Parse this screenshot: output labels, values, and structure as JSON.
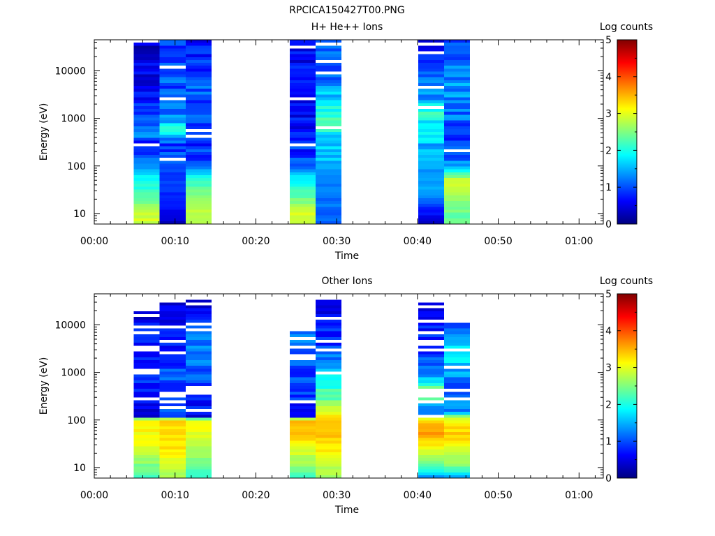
{
  "figure": {
    "title": "RPCICA150427T00.PNG"
  },
  "colormap": [
    "#000080",
    "#0000ff",
    "#0080ff",
    "#00ffff",
    "#80ff80",
    "#ffff00",
    "#ff8000",
    "#ff0000",
    "#800000"
  ],
  "chart_data": [
    {
      "type": "heatmap",
      "title": "H+ He++ Ions",
      "xlabel": "Time",
      "ylabel": "Energy (eV)",
      "xscale": "linear",
      "yscale": "log",
      "xlim": [
        0,
        63
      ],
      "ylim": [
        6,
        45000
      ],
      "xticks": [
        0,
        10,
        20,
        30,
        40,
        50,
        60
      ],
      "xtick_labels": [
        "00:00",
        "00:10",
        "00:20",
        "00:30",
        "00:40",
        "00:50",
        "01:00"
      ],
      "yticks": [
        10,
        100,
        1000,
        10000
      ],
      "ytick_labels": [
        "10",
        "100",
        "1000",
        "10000"
      ],
      "colorbar": {
        "label": "Log counts",
        "range": [
          0,
          5
        ],
        "ticks": [
          0,
          1,
          2,
          3,
          4,
          5
        ],
        "tick_labels": [
          "0",
          "1",
          "2",
          "3",
          "4",
          "5"
        ]
      },
      "columns": [
        {
          "t_start": 4.9,
          "t_end": 8.1,
          "energy_max": 45000,
          "profile": [
            [
              6,
              2.9
            ],
            [
              10,
              2.9
            ],
            [
              25,
              2.2
            ],
            [
              60,
              1.8
            ],
            [
              100,
              1.3
            ],
            [
              300,
              0.8
            ],
            [
              600,
              1.4
            ],
            [
              1000,
              0.8
            ],
            [
              5000,
              0.6
            ],
            [
              45000,
              0.4
            ]
          ]
        },
        {
          "t_start": 8.1,
          "t_end": 11.3,
          "energy_max": 45000,
          "profile": [
            [
              6,
              0.3
            ],
            [
              15,
              0.7
            ],
            [
              30,
              0.9
            ],
            [
              100,
              0.9
            ],
            [
              300,
              0.9
            ],
            [
              600,
              2.3
            ],
            [
              1000,
              1.2
            ],
            [
              5000,
              1.0
            ],
            [
              45000,
              0.8
            ]
          ]
        },
        {
          "t_start": 11.3,
          "t_end": 14.5,
          "energy_max": 45000,
          "profile": [
            [
              6,
              2.9
            ],
            [
              20,
              2.6
            ],
            [
              50,
              2.1
            ],
            [
              100,
              1.1
            ],
            [
              300,
              0.8
            ],
            [
              1000,
              1.0
            ],
            [
              5000,
              1.0
            ],
            [
              45000,
              0.6
            ]
          ]
        },
        {
          "t_start": 24.2,
          "t_end": 27.4,
          "energy_max": 45000,
          "profile": [
            [
              6,
              2.9
            ],
            [
              10,
              2.9
            ],
            [
              25,
              2.3
            ],
            [
              60,
              1.8
            ],
            [
              100,
              1.1
            ],
            [
              300,
              0.7
            ],
            [
              1000,
              0.6
            ],
            [
              5000,
              0.8
            ],
            [
              45000,
              0.4
            ]
          ]
        },
        {
          "t_start": 27.4,
          "t_end": 30.6,
          "energy_max": 45000,
          "profile": [
            [
              6,
              1.1
            ],
            [
              20,
              1.2
            ],
            [
              100,
              1.4
            ],
            [
              300,
              1.5
            ],
            [
              1000,
              2.2
            ],
            [
              3000,
              1.6
            ],
            [
              10000,
              1.0
            ],
            [
              45000,
              1.0
            ]
          ]
        },
        {
          "t_start": 40.1,
          "t_end": 43.3,
          "energy_max": 45000,
          "profile": [
            [
              6,
              0.4
            ],
            [
              15,
              0.9
            ],
            [
              30,
              1.4
            ],
            [
              100,
              1.4
            ],
            [
              300,
              1.5
            ],
            [
              800,
              1.8
            ],
            [
              1500,
              2.0
            ],
            [
              3000,
              1.3
            ],
            [
              10000,
              1.0
            ],
            [
              45000,
              0.6
            ]
          ]
        },
        {
          "t_start": 43.3,
          "t_end": 46.5,
          "energy_max": 45000,
          "profile": [
            [
              6,
              2.3
            ],
            [
              20,
              2.6
            ],
            [
              50,
              2.9
            ],
            [
              100,
              1.3
            ],
            [
              300,
              0.8
            ],
            [
              1000,
              1.1
            ],
            [
              5000,
              1.3
            ],
            [
              45000,
              0.9
            ]
          ]
        }
      ]
    },
    {
      "type": "heatmap",
      "title": "Other Ions",
      "xlabel": "Time",
      "ylabel": "Energy (eV)",
      "xscale": "linear",
      "yscale": "log",
      "xlim": [
        0,
        63
      ],
      "ylim": [
        6,
        45000
      ],
      "xticks": [
        0,
        10,
        20,
        30,
        40,
        50,
        60
      ],
      "xtick_labels": [
        "00:00",
        "00:10",
        "00:20",
        "00:30",
        "00:40",
        "00:50",
        "01:00"
      ],
      "yticks": [
        10,
        100,
        1000,
        10000
      ],
      "ytick_labels": [
        "10",
        "100",
        "1000",
        "10000"
      ],
      "colorbar": {
        "label": "Log counts",
        "range": [
          0,
          5
        ],
        "ticks": [
          0,
          1,
          2,
          3,
          4,
          5
        ],
        "tick_labels": [
          "0",
          "1",
          "2",
          "3",
          "4",
          "5"
        ]
      },
      "columns": [
        {
          "t_start": 4.9,
          "t_end": 8.1,
          "energy_max": 20000,
          "profile": [
            [
              6,
              2.2
            ],
            [
              10,
              2.4
            ],
            [
              20,
              2.9
            ],
            [
              50,
              3.1
            ],
            [
              100,
              3.2
            ],
            [
              120,
              0.3
            ],
            [
              1000,
              0.8
            ],
            [
              5000,
              0.7
            ],
            [
              20000,
              0.3
            ]
          ]
        },
        {
          "t_start": 8.1,
          "t_end": 11.3,
          "energy_max": 30000,
          "profile": [
            [
              6,
              2.6
            ],
            [
              10,
              2.8
            ],
            [
              20,
              3.2
            ],
            [
              50,
              3.3
            ],
            [
              100,
              3.3
            ],
            [
              120,
              1.0
            ],
            [
              1000,
              0.9
            ],
            [
              4000,
              0.7
            ],
            [
              30000,
              0.3
            ]
          ]
        },
        {
          "t_start": 11.3,
          "t_end": 14.5,
          "energy_max": 32000,
          "profile": [
            [
              6,
              2.1
            ],
            [
              10,
              2.4
            ],
            [
              20,
              2.7
            ],
            [
              50,
              3.0
            ],
            [
              100,
              3.1
            ],
            [
              120,
              0.5
            ],
            [
              1000,
              1.0
            ],
            [
              4000,
              1.2
            ],
            [
              32000,
              0.4
            ]
          ]
        },
        {
          "t_start": 24.2,
          "t_end": 27.4,
          "energy_max": 7000,
          "profile": [
            [
              6,
              2.1
            ],
            [
              10,
              2.5
            ],
            [
              20,
              2.9
            ],
            [
              50,
              3.4
            ],
            [
              100,
              3.5
            ],
            [
              120,
              0.7
            ],
            [
              1000,
              0.9
            ],
            [
              7000,
              1.3
            ]
          ]
        },
        {
          "t_start": 27.4,
          "t_end": 30.6,
          "energy_max": 45000,
          "profile": [
            [
              6,
              2.6
            ],
            [
              10,
              2.8
            ],
            [
              20,
              3.2
            ],
            [
              50,
              3.4
            ],
            [
              100,
              3.5
            ],
            [
              150,
              2.8
            ],
            [
              400,
              2.2
            ],
            [
              1000,
              1.5
            ],
            [
              3000,
              0.9
            ],
            [
              45000,
              0.3
            ]
          ]
        },
        {
          "t_start": 40.1,
          "t_end": 43.3,
          "energy_max": 30000,
          "profile": [
            [
              6,
              1.2
            ],
            [
              10,
              2.2
            ],
            [
              20,
              2.9
            ],
            [
              50,
              3.6
            ],
            [
              100,
              3.4
            ],
            [
              150,
              0.9
            ],
            [
              350,
              2.8
            ],
            [
              1000,
              1.0
            ],
            [
              5000,
              0.8
            ],
            [
              30000,
              0.3
            ]
          ]
        },
        {
          "t_start": 43.3,
          "t_end": 46.5,
          "energy_max": 11000,
          "profile": [
            [
              6,
              1.4
            ],
            [
              10,
              2.4
            ],
            [
              20,
              2.9
            ],
            [
              50,
              3.4
            ],
            [
              100,
              3.1
            ],
            [
              150,
              1.3
            ],
            [
              500,
              0.8
            ],
            [
              1000,
              1.4
            ],
            [
              3000,
              1.9
            ],
            [
              11000,
              0.6
            ]
          ]
        }
      ]
    }
  ]
}
